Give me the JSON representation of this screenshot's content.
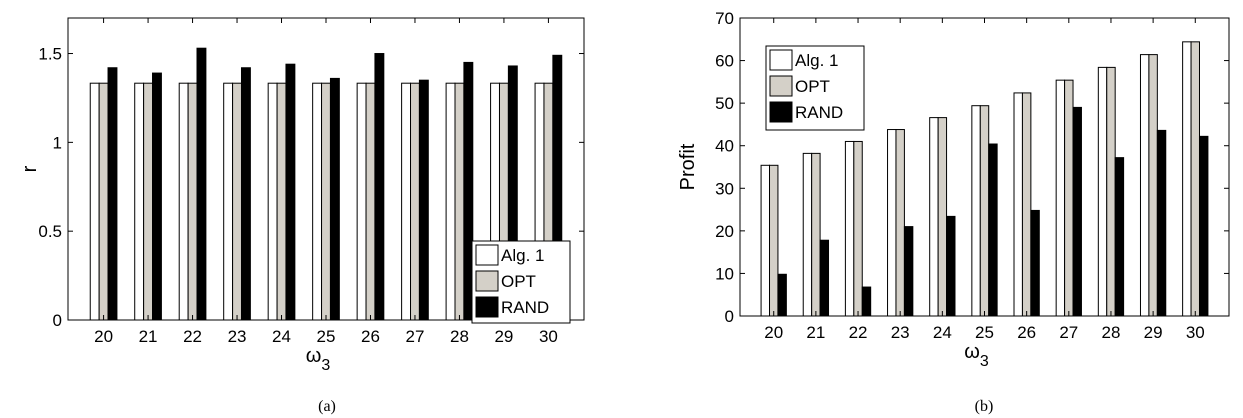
{
  "chart_data": [
    {
      "type": "bar",
      "caption": "(a)",
      "xlabel": "ω",
      "xlabel_sub": "3",
      "ylabel": "r",
      "ylim": [
        0,
        1.7
      ],
      "yticks": [
        0,
        0.5,
        1,
        1.5
      ],
      "ytick_labels": [
        "0",
        "0.5",
        "1",
        "1.5"
      ],
      "categories": [
        "20",
        "21",
        "22",
        "23",
        "24",
        "25",
        "26",
        "27",
        "28",
        "29",
        "30"
      ],
      "legend_position": "right",
      "series": [
        {
          "name": "Alg. 1",
          "color": "#ffffff",
          "values": [
            1.333,
            1.333,
            1.333,
            1.333,
            1.333,
            1.333,
            1.333,
            1.333,
            1.333,
            1.333,
            1.333
          ]
        },
        {
          "name": "OPT",
          "color": "#d4d0c8",
          "values": [
            1.333,
            1.333,
            1.333,
            1.333,
            1.333,
            1.333,
            1.333,
            1.333,
            1.333,
            1.333,
            1.333
          ]
        },
        {
          "name": "RAND",
          "color": "#000000",
          "values": [
            1.42,
            1.39,
            1.53,
            1.42,
            1.44,
            1.36,
            1.5,
            1.35,
            1.45,
            1.43,
            1.49
          ]
        }
      ]
    },
    {
      "type": "bar",
      "caption": "(b)",
      "xlabel": "ω",
      "xlabel_sub": "3",
      "ylabel": "Profit",
      "ylim": [
        0,
        70
      ],
      "yticks": [
        0,
        10,
        20,
        30,
        40,
        50,
        60,
        70
      ],
      "ytick_labels": [
        "0",
        "10",
        "20",
        "30",
        "40",
        "50",
        "60",
        "70"
      ],
      "categories": [
        "20",
        "21",
        "22",
        "23",
        "24",
        "25",
        "26",
        "27",
        "28",
        "29",
        "30"
      ],
      "legend_position": "top-left",
      "series": [
        {
          "name": "Alg. 1",
          "color": "#ffffff",
          "values": [
            35.4,
            38.2,
            41.0,
            43.8,
            46.6,
            49.4,
            52.4,
            55.4,
            58.4,
            61.4,
            64.4
          ]
        },
        {
          "name": "OPT",
          "color": "#d4d0c8",
          "values": [
            35.4,
            38.2,
            41.0,
            43.8,
            46.6,
            49.4,
            52.4,
            55.4,
            58.4,
            61.4,
            64.4
          ]
        },
        {
          "name": "RAND",
          "color": "#000000",
          "values": [
            9.8,
            17.8,
            6.8,
            21.0,
            23.4,
            40.4,
            24.8,
            49.0,
            37.2,
            43.6,
            42.2
          ]
        }
      ]
    }
  ]
}
